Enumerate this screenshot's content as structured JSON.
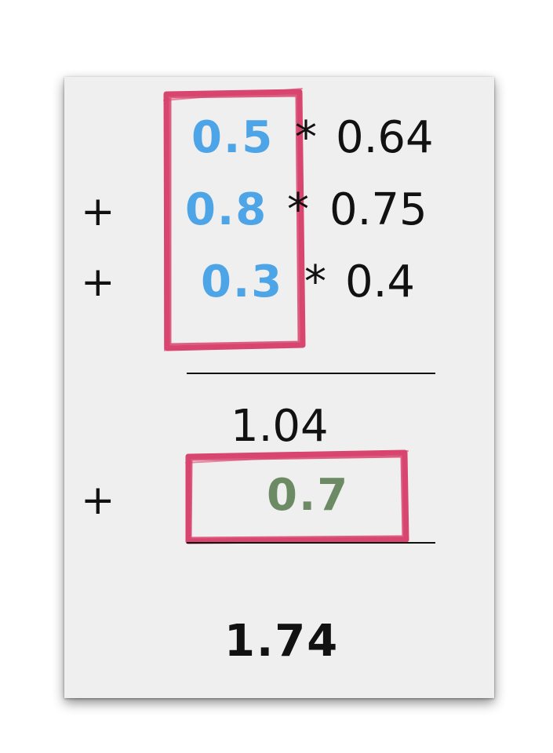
{
  "colors": {
    "paper": "#efefef",
    "highlight_box": "#d8456e",
    "weight_blue": "#4da4e6",
    "sum_green": "#6c8a63"
  },
  "rows": [
    {
      "sign": "",
      "weight": "0.5",
      "operator": "*",
      "value": "0.64"
    },
    {
      "sign": "+",
      "weight": "0.8",
      "operator": "*",
      "value": "0.75"
    },
    {
      "sign": "+",
      "weight": "0.3",
      "operator": "*",
      "value": "0.4"
    }
  ],
  "subtotal": "1.04",
  "bias": {
    "sign": "+",
    "value": "0.7"
  },
  "total": "1.74"
}
